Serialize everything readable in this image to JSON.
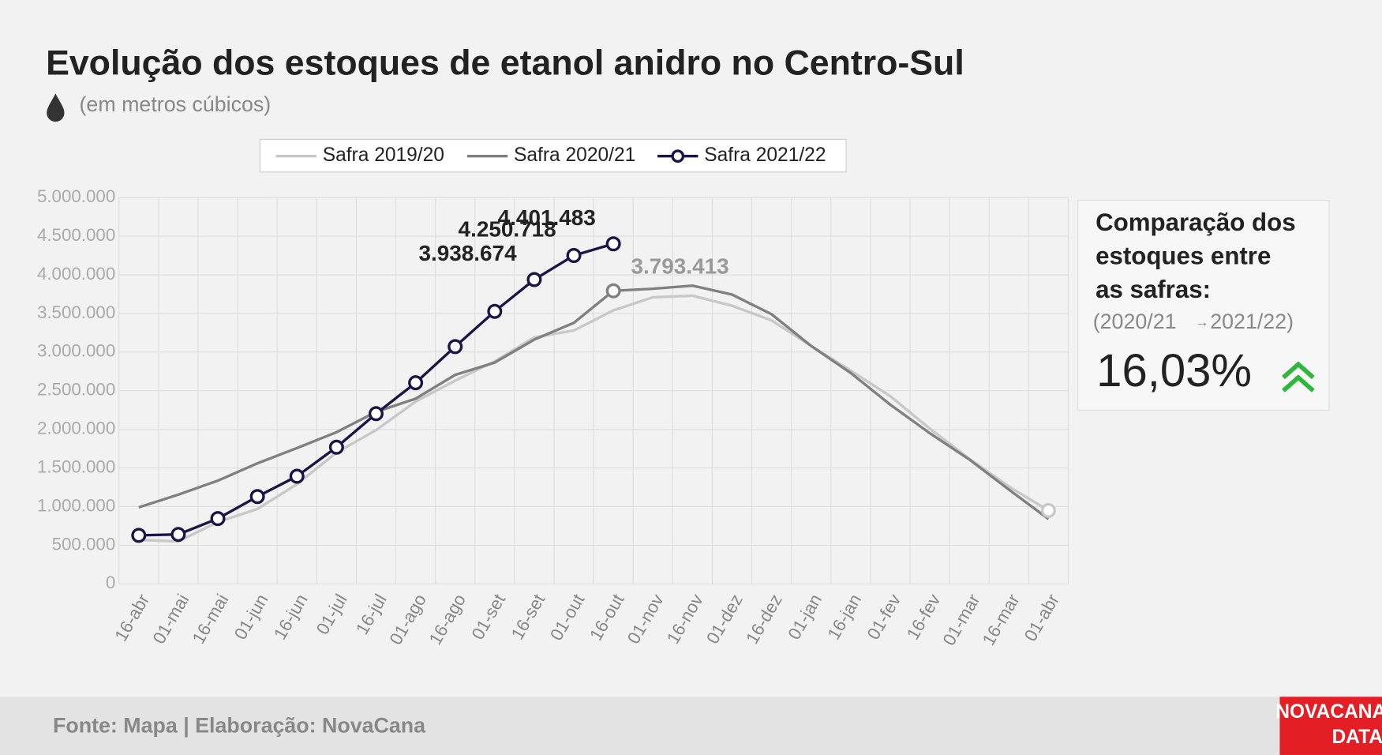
{
  "chart_data": {
    "type": "line",
    "title": "Evolução dos estoques de etanol anidro no Centro-Sul",
    "subtitle": "(em metros cúbicos)",
    "categories": [
      "16-abr",
      "01-mai",
      "16-mai",
      "01-jun",
      "16-jun",
      "01-jul",
      "16-jul",
      "01-ago",
      "16-ago",
      "01-set",
      "16-set",
      "01-out",
      "16-out",
      "01-nov",
      "16-nov",
      "01-dez",
      "16-dez",
      "01-jan",
      "16-jan",
      "01-fev",
      "16-fev",
      "01-mar",
      "16-mar",
      "01-abr"
    ],
    "series": [
      {
        "name": "Safra 2019/20",
        "color": "#c8c8c8",
        "markers": "last",
        "values": [
          570000,
          550000,
          800000,
          970000,
          1290000,
          1700000,
          1990000,
          2360000,
          2630000,
          2880000,
          3190000,
          3280000,
          3540000,
          3710000,
          3730000,
          3600000,
          3410000,
          3080000,
          2760000,
          2430000,
          2010000,
          1620000,
          1260000,
          950000
        ]
      },
      {
        "name": "Safra 2020/21",
        "color": "#808080",
        "markers": "labeled",
        "values": [
          990000,
          1155000,
          1336000,
          1560000,
          1758000,
          1963000,
          2226000,
          2397000,
          2705000,
          2865000,
          3162000,
          3379000,
          3793413,
          3820000,
          3860000,
          3745000,
          3490000,
          3080000,
          2730000,
          2320000,
          1950000,
          1610000,
          1220000,
          840000
        ],
        "value_labels": [
          null,
          null,
          null,
          null,
          null,
          null,
          null,
          null,
          null,
          null,
          null,
          null,
          "3.793.413",
          null,
          null,
          null,
          null,
          null,
          null,
          null,
          null,
          null,
          null,
          null
        ]
      },
      {
        "name": "Safra 2021/22",
        "color": "#1b1446",
        "markers": "all",
        "values": [
          628000,
          640000,
          845000,
          1130000,
          1393000,
          1769000,
          2203000,
          2603000,
          3071000,
          3527000,
          3938674,
          4250718,
          4401483,
          null,
          null,
          null,
          null,
          null,
          null,
          null,
          null,
          null,
          null,
          null
        ],
        "value_labels": [
          null,
          null,
          null,
          null,
          null,
          null,
          null,
          null,
          null,
          null,
          "3.938.674",
          "4.250.718",
          "4.401.483",
          null,
          null,
          null,
          null,
          null,
          null,
          null,
          null,
          null,
          null,
          null
        ]
      }
    ],
    "ylim": [
      0,
      5000000
    ],
    "yticks": [
      0,
      {
        "value": 500000,
        "label": "500.000"
      },
      {
        "value": 1000000,
        "label": "1.000.000"
      },
      {
        "value": 1500000,
        "label": "1.500.000"
      },
      {
        "value": 2000000,
        "label": "2.000.000"
      },
      {
        "value": 2500000,
        "label": "2.500.000"
      },
      {
        "value": 3000000,
        "label": "3.000.000"
      },
      {
        "value": 3500000,
        "label": "3.500.000"
      },
      {
        "value": 4000000,
        "label": "4.000.000"
      },
      {
        "value": 4500000,
        "label": "4.500.000"
      },
      {
        "value": 5000000,
        "label": "5.000.000"
      }
    ],
    "grid": true
  },
  "panel": {
    "title_lines": [
      "Comparação dos",
      "estoques entre",
      "as safras:"
    ],
    "from": "(2020/21",
    "arrow": "→",
    "to": "2021/22)",
    "change": "16,03%"
  },
  "footer": {
    "source": "Fonte: Mapa | Elaboração: NovaCana",
    "logo": [
      "NOVACANA",
      "DATA"
    ]
  }
}
